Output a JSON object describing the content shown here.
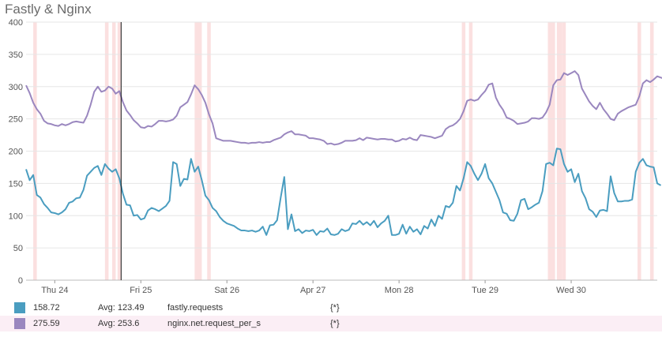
{
  "panel": {
    "title": "Fastly & Nginx"
  },
  "chart_data": {
    "type": "line",
    "ylim": [
      0,
      400
    ],
    "yticks": [
      0,
      50,
      100,
      150,
      200,
      250,
      300,
      350,
      400
    ],
    "xlim": [
      0,
      176
    ],
    "xticks": [
      {
        "label": "Thu 24",
        "x": 8
      },
      {
        "label": "Fri 25",
        "x": 32
      },
      {
        "label": "Sat 26",
        "x": 56
      },
      {
        "label": "Apr 27",
        "x": 80
      },
      {
        "label": "Mon 28",
        "x": 104
      },
      {
        "label": "Tue 29",
        "x": 128
      },
      {
        "label": "Wed 30",
        "x": 152
      }
    ],
    "grid": true,
    "cursor_x": 26.5,
    "event_bands": [
      [
        2,
        3
      ],
      [
        22,
        23
      ],
      [
        24,
        25
      ],
      [
        25.5,
        26.5
      ],
      [
        47,
        49
      ],
      [
        50.5,
        51.5
      ],
      [
        121.5,
        122.5
      ],
      [
        123.5,
        124.5
      ],
      [
        145.5,
        147.5
      ],
      [
        148,
        149.5
      ],
      [
        149.5,
        150.5
      ],
      [
        170.5,
        171.5
      ],
      [
        174,
        175
      ]
    ],
    "series": [
      {
        "name": "fastly.requests",
        "color": "#4a9dc0",
        "values": [
          172,
          155,
          163,
          132,
          128,
          118,
          112,
          105,
          104,
          102,
          105,
          110,
          120,
          122,
          127,
          128,
          140,
          162,
          168,
          174,
          177,
          163,
          180,
          173,
          168,
          172,
          158,
          134,
          117,
          116,
          100,
          101,
          94,
          96,
          108,
          112,
          110,
          107,
          111,
          115,
          123,
          183,
          180,
          146,
          157,
          156,
          188,
          168,
          176,
          155,
          131,
          124,
          112,
          107,
          98,
          92,
          88,
          86,
          84,
          80,
          77,
          77,
          76,
          77,
          75,
          77,
          83,
          70,
          85,
          86,
          93,
          128,
          160,
          79,
          102,
          76,
          79,
          73,
          77,
          76,
          78,
          70,
          76,
          75,
          80,
          71,
          70,
          72,
          79,
          76,
          78,
          88,
          87,
          92,
          86,
          90,
          85,
          92,
          82,
          88,
          92,
          100,
          70,
          70,
          72,
          86,
          72,
          83,
          75,
          79,
          71,
          84,
          80,
          94,
          84,
          100,
          95,
          115,
          113,
          120,
          146,
          139,
          158,
          183,
          177,
          165,
          155,
          165,
          180,
          158,
          150,
          137,
          124,
          105,
          103,
          93,
          92,
          103,
          124,
          126,
          110,
          113,
          117,
          120,
          138,
          180,
          182,
          178,
          204,
          203,
          180,
          168,
          172,
          152,
          165,
          138,
          127,
          110,
          106,
          98,
          108,
          109,
          107,
          161,
          135,
          122,
          122,
          123,
          123,
          125,
          168,
          182,
          188,
          178,
          176,
          175,
          150,
          147
        ]
      },
      {
        "name": "nginx.net.request_per_s",
        "color": "#9a87bf",
        "values": [
          302,
          290,
          275,
          265,
          258,
          247,
          243,
          242,
          240,
          239,
          242,
          240,
          242,
          245,
          246,
          245,
          244,
          255,
          272,
          292,
          300,
          292,
          294,
          300,
          297,
          289,
          293,
          276,
          263,
          256,
          248,
          243,
          237,
          236,
          239,
          238,
          242,
          247,
          247,
          246,
          247,
          249,
          255,
          268,
          272,
          276,
          288,
          302,
          296,
          287,
          275,
          257,
          243,
          220,
          218,
          216,
          216,
          216,
          215,
          214,
          213,
          213,
          212,
          213,
          213,
          214,
          213,
          214,
          214,
          217,
          219,
          221,
          226,
          229,
          231,
          226,
          226,
          225,
          224,
          220,
          220,
          219,
          218,
          216,
          211,
          212,
          210,
          211,
          213,
          216,
          216,
          216,
          217,
          220,
          217,
          221,
          220,
          219,
          218,
          219,
          219,
          218,
          218,
          215,
          216,
          219,
          218,
          221,
          218,
          217,
          225,
          224,
          223,
          222,
          220,
          222,
          224,
          234,
          238,
          240,
          244,
          250,
          262,
          278,
          280,
          278,
          280,
          287,
          293,
          303,
          305,
          283,
          272,
          264,
          252,
          250,
          247,
          242,
          243,
          244,
          246,
          251,
          251,
          250,
          252,
          260,
          272,
          302,
          310,
          311,
          321,
          318,
          321,
          324,
          318,
          297,
          287,
          277,
          270,
          265,
          275,
          265,
          258,
          250,
          248,
          258,
          262,
          265,
          268,
          270,
          272,
          285,
          305,
          310,
          307,
          311,
          316,
          314,
          312
        ]
      }
    ]
  },
  "legend": {
    "rows": [
      {
        "value": "158.72",
        "avg": "Avg: 123.49",
        "metric": "fastly.requests",
        "scope": "{*}",
        "color": "#4a9dc0"
      },
      {
        "value": "275.59",
        "avg": "Avg: 253.6",
        "metric": "nginx.net.request_per_s",
        "scope": "{*}",
        "color": "#9a87bf"
      }
    ]
  }
}
